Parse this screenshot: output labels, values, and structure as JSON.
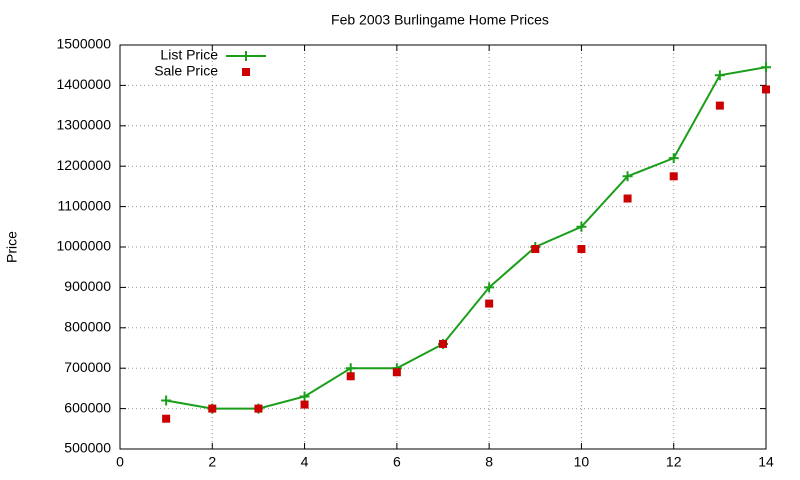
{
  "chart_data": {
    "type": "line",
    "title": "Feb 2003 Burlingame Home Prices",
    "y_label": "Price",
    "x": [
      1,
      2,
      3,
      4,
      5,
      6,
      7,
      8,
      9,
      10,
      11,
      12,
      13,
      14
    ],
    "series": [
      {
        "name": "List Price",
        "color": "#1a9e1a",
        "style": "linespoints",
        "values": [
          620000,
          600000,
          600000,
          630000,
          700000,
          700000,
          760000,
          900000,
          1000000,
          1050000,
          1175000,
          1220000,
          1425000,
          1445000
        ]
      },
      {
        "name": "Sale Price",
        "color": "#cc0000",
        "style": "points",
        "values": [
          575000,
          600000,
          600000,
          610000,
          680000,
          690000,
          760000,
          860000,
          995000,
          995000,
          1120000,
          1175000,
          1350000,
          1390000
        ]
      }
    ],
    "xlim": [
      0,
      14
    ],
    "xticks": [
      0,
      2,
      4,
      6,
      8,
      10,
      12,
      14
    ],
    "ylim": [
      500000,
      1500000
    ],
    "yticks": [
      500000,
      600000,
      700000,
      800000,
      900000,
      1000000,
      1100000,
      1200000,
      1300000,
      1400000,
      1500000
    ],
    "grid": true,
    "legend": "top-left"
  }
}
